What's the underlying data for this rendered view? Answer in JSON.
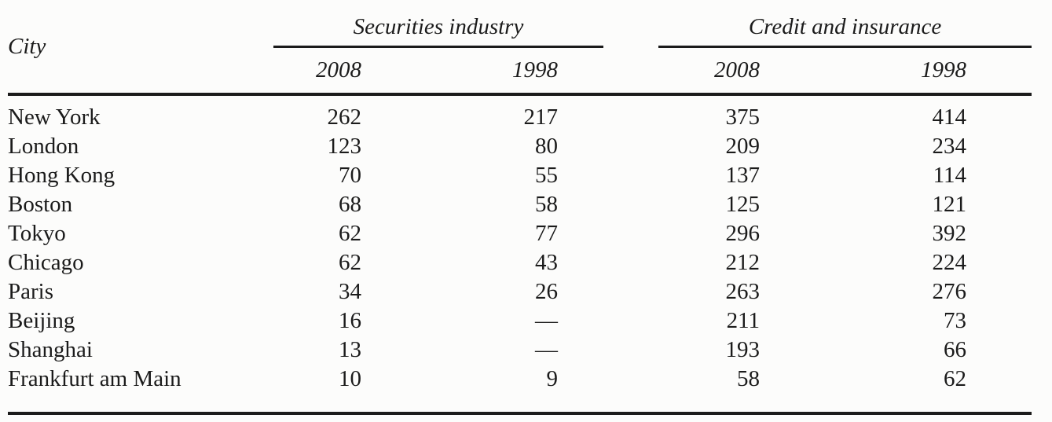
{
  "page": {
    "background_color": "#fcfcfb",
    "text_color": "#1b1b1b"
  },
  "table": {
    "city_header": "City",
    "groups": [
      {
        "label": "Securities industry",
        "years": [
          "2008",
          "1998"
        ]
      },
      {
        "label": "Credit and insurance",
        "years": [
          "2008",
          "1998"
        ]
      }
    ],
    "missing_value_symbol": "—",
    "rows": [
      {
        "city": "New York",
        "values": [
          "262",
          "217",
          "375",
          "414"
        ]
      },
      {
        "city": "London",
        "values": [
          "123",
          "80",
          "209",
          "234"
        ]
      },
      {
        "city": "Hong Kong",
        "values": [
          "70",
          "55",
          "137",
          "114"
        ]
      },
      {
        "city": "Boston",
        "values": [
          "68",
          "58",
          "125",
          "121"
        ]
      },
      {
        "city": "Tokyo",
        "values": [
          "62",
          "77",
          "296",
          "392"
        ]
      },
      {
        "city": "Chicago",
        "values": [
          "62",
          "43",
          "212",
          "224"
        ]
      },
      {
        "city": "Paris",
        "values": [
          "34",
          "26",
          "263",
          "276"
        ]
      },
      {
        "city": "Beijing",
        "values": [
          "16",
          "—",
          "211",
          "73"
        ]
      },
      {
        "city": "Shanghai",
        "values": [
          "13",
          "—",
          "193",
          "66"
        ]
      },
      {
        "city": "Frankfurt am Main",
        "values": [
          "10",
          "9",
          "58",
          "62"
        ]
      }
    ]
  },
  "chart_data": {
    "type": "table",
    "title": "",
    "columns": [
      "City",
      "Securities industry 2008",
      "Securities industry 1998",
      "Credit and insurance 2008",
      "Credit and insurance 1998"
    ],
    "rows": [
      [
        "New York",
        262,
        217,
        375,
        414
      ],
      [
        "London",
        123,
        80,
        209,
        234
      ],
      [
        "Hong Kong",
        70,
        55,
        137,
        114
      ],
      [
        "Boston",
        68,
        58,
        125,
        121
      ],
      [
        "Tokyo",
        62,
        77,
        296,
        392
      ],
      [
        "Chicago",
        62,
        43,
        212,
        224
      ],
      [
        "Paris",
        34,
        26,
        263,
        276
      ],
      [
        "Beijing",
        16,
        null,
        211,
        73
      ],
      [
        "Shanghai",
        13,
        null,
        193,
        66
      ],
      [
        "Frankfurt am Main",
        10,
        9,
        58,
        62
      ]
    ],
    "notes": "null values shown as em dash (—) in the source table"
  }
}
